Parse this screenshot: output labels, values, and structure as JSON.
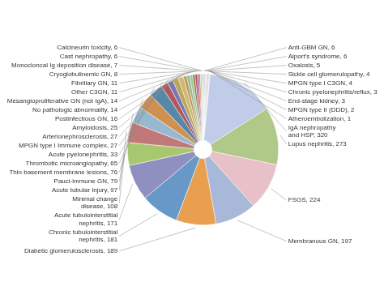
{
  "chart_data": {
    "type": "doughnut",
    "categories": [
      "Anti-GBM GN, 6",
      "Alport's syndrome, 6",
      "Oxalosis, 5",
      "Sickle cell glomerulopathy, 4",
      "MPGN type I C3GN, 4",
      "Chronic pyelonephritis/reflux, 3",
      "End-stage kidney, 3",
      "MPGN type II (DDD), 2",
      "Atheroembolization, 1",
      "IgA nephropathy\nand HSP, 320",
      "Lupus nephritis, 273",
      "FSGS, 224",
      "Membranous GN, 197",
      "Diabetic glomerulosclerosis, 189",
      "Chronic tubulointerstitial\nnephritis, 181",
      "Acute tubulointerstitial\nnephritis, 171",
      "Minimal change\ndisease, 108",
      "Acute tubular injury, 97",
      "Pauci-immune GN, 79",
      "Thin basement membrane lesions, 76",
      "Thrombotic microangiopathy, 65",
      "Acute pyelonephritis, 33",
      "MPGN type I Immune complex, 27",
      "Arterionephrosclerosis, 27",
      "Amyloidosis, 25",
      "Postinfectious GN, 16",
      "No pathologic abnormality, 14",
      "Mesangioproliferative GN (not IgA), 14",
      "Other C3GN, 11",
      "Fibrillary GN, 11",
      "Cryoglobulinemic GN, 8",
      "Monocloncal Ig deposition disease, 7",
      "Cast nephropathy, 6",
      "Calcineurin toxicity, 6"
    ],
    "values": [
      6,
      6,
      5,
      4,
      4,
      3,
      3,
      2,
      1,
      320,
      273,
      224,
      197,
      189,
      181,
      171,
      108,
      97,
      79,
      76,
      65,
      33,
      27,
      27,
      25,
      16,
      14,
      14,
      11,
      11,
      8,
      7,
      6,
      6
    ],
    "colors": [
      "#c0c0c0",
      "#c8c8c8",
      "#d8d8d8",
      "#b0b0b0",
      "#a0a0a0",
      "#909090",
      "#989898",
      "#b8b8b8",
      "#c0c0c0",
      "#c0cce8",
      "#b0c888",
      "#e8c0c8",
      "#a8b8d8",
      "#e8a050",
      "#6898c8",
      "#9090c0",
      "#a8c870",
      "#c07878",
      "#98b8d0",
      "#d09050",
      "#5888a8",
      "#b05858",
      "#7878b8",
      "#b8a858",
      "#d0b870",
      "#c09858",
      "#90b890",
      "#98cc98",
      "#a87050",
      "#b85858",
      "#7850a0",
      "#c87070",
      "#b0c8a0",
      "#b8d0a8"
    ]
  }
}
